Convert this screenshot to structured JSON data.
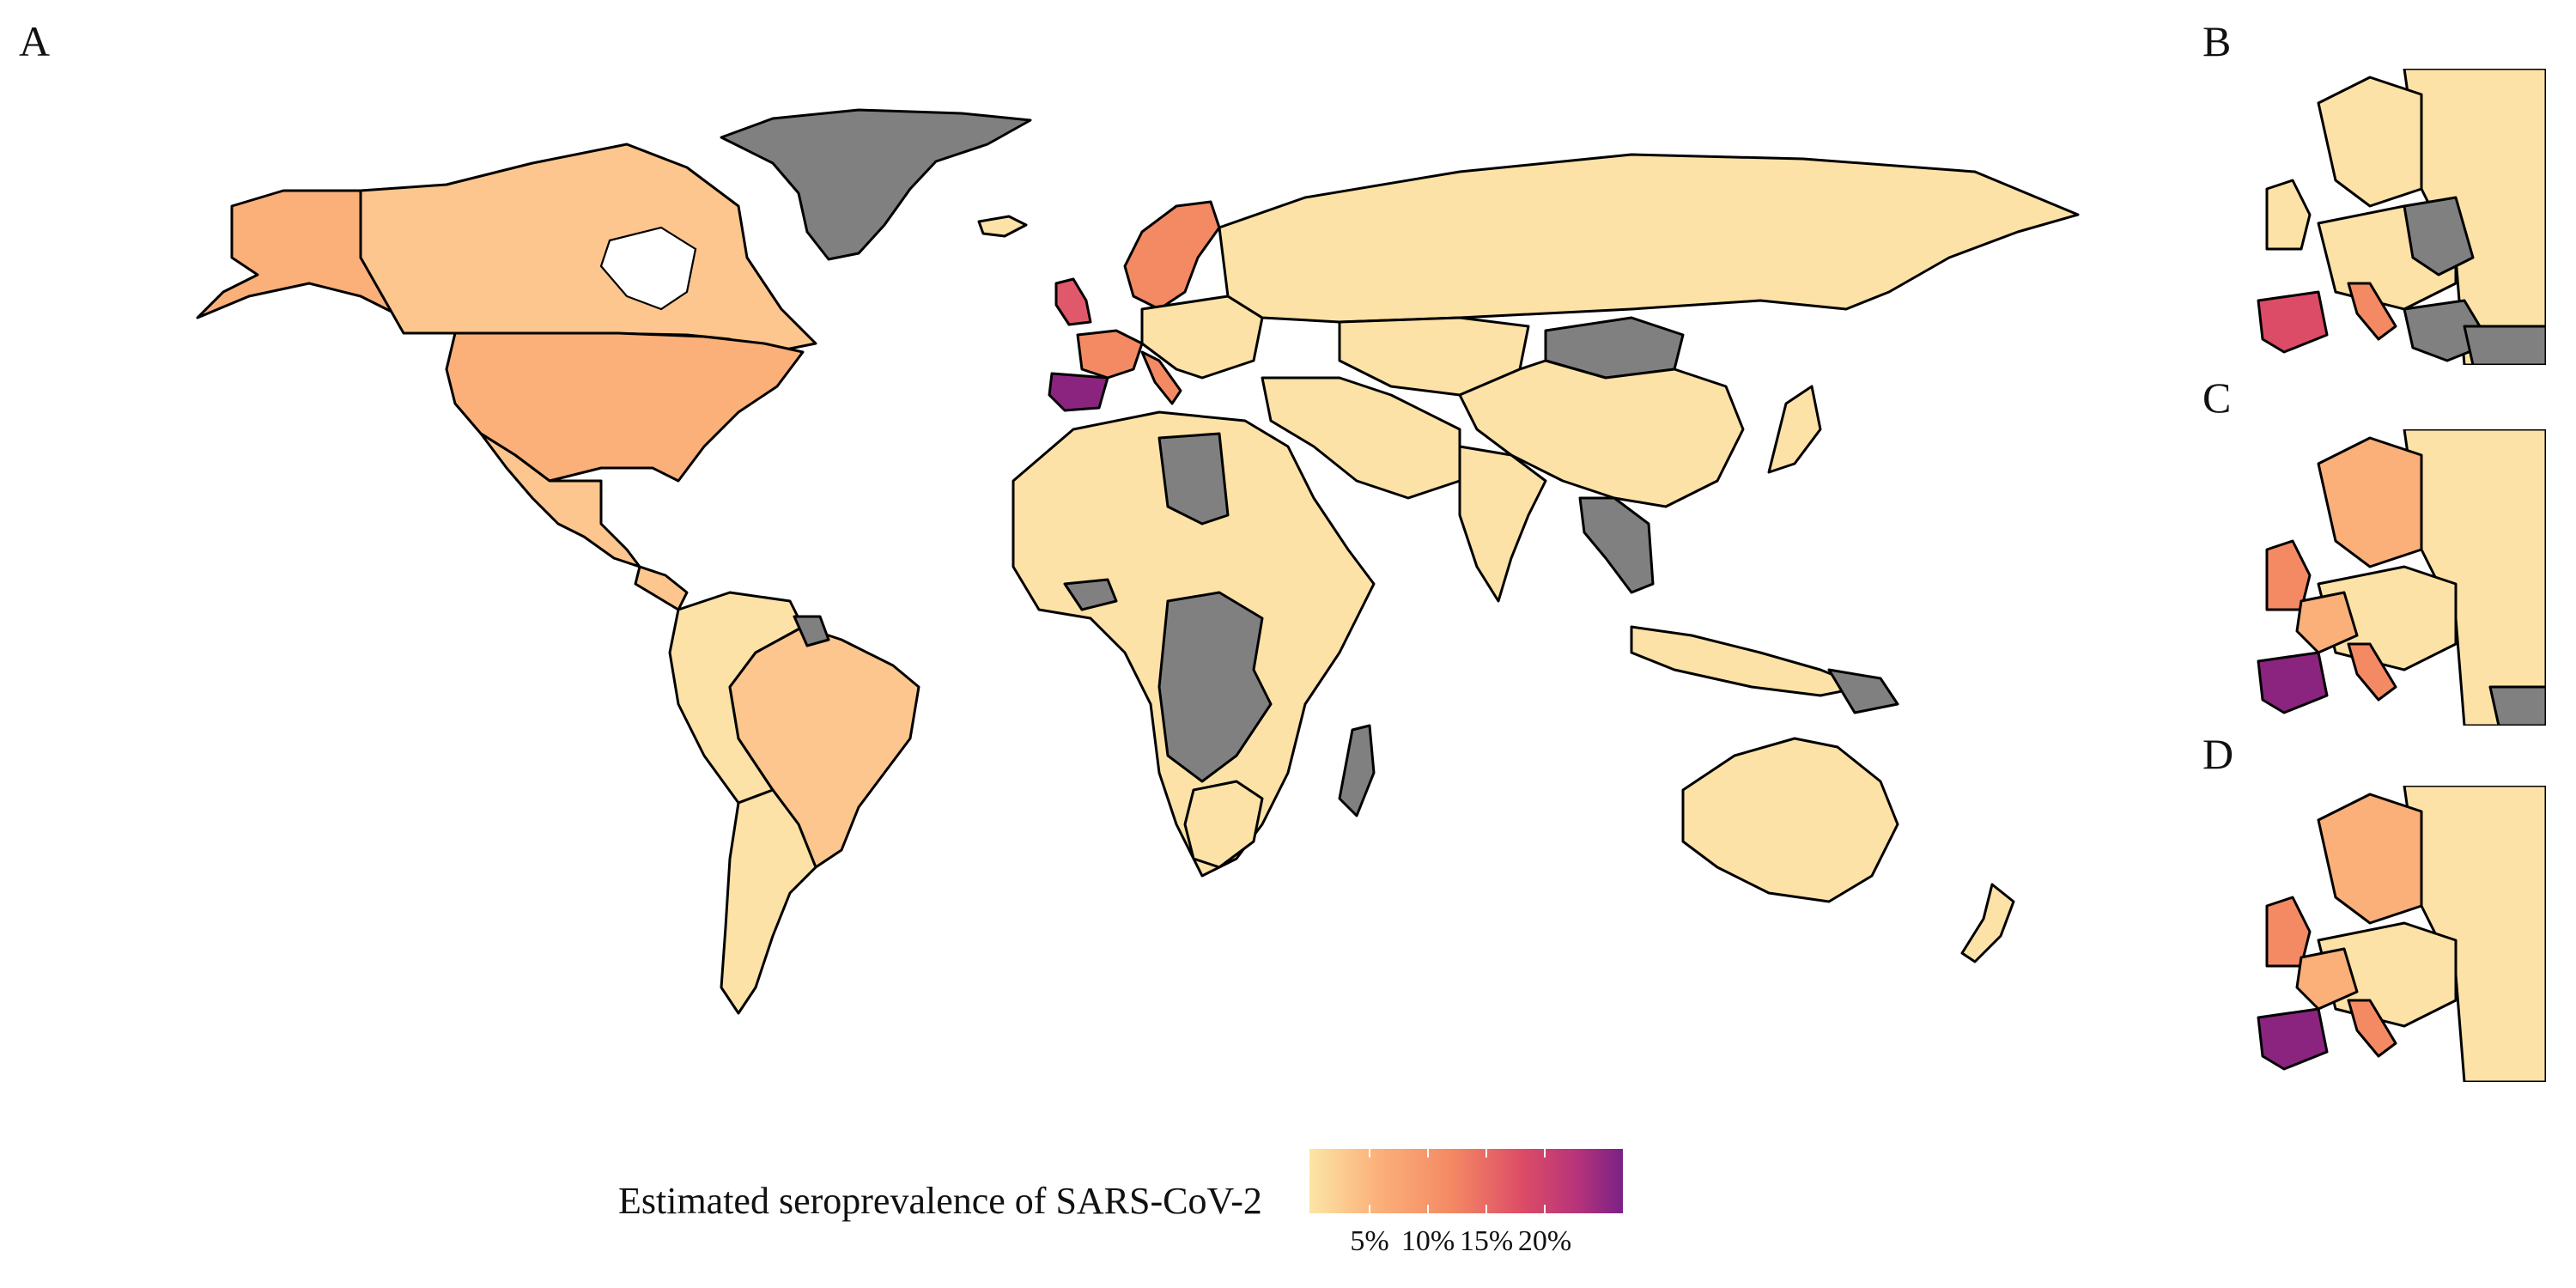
{
  "panels": {
    "a": "A",
    "b": "B",
    "c": "C",
    "d": "D"
  },
  "legend": {
    "title": "Estimated seroprevalence of SARS-CoV-2",
    "ticks": [
      "5%",
      "10%",
      "15%",
      "20%"
    ],
    "scale_domain": [
      2,
      25
    ],
    "scale_colors": [
      "#fce5a6",
      "#fbb07a",
      "#f48a64",
      "#dc4c66",
      "#b8347a",
      "#7a2186"
    ],
    "no_data_color": "#808080"
  },
  "colors": {
    "very_low": "#fce2a6",
    "low": "#fcc68e",
    "mid": "#fbb07a",
    "high": "#f48a64",
    "higher": "#e0596a",
    "highest": "#8a247f",
    "grey": "#808080"
  }
}
